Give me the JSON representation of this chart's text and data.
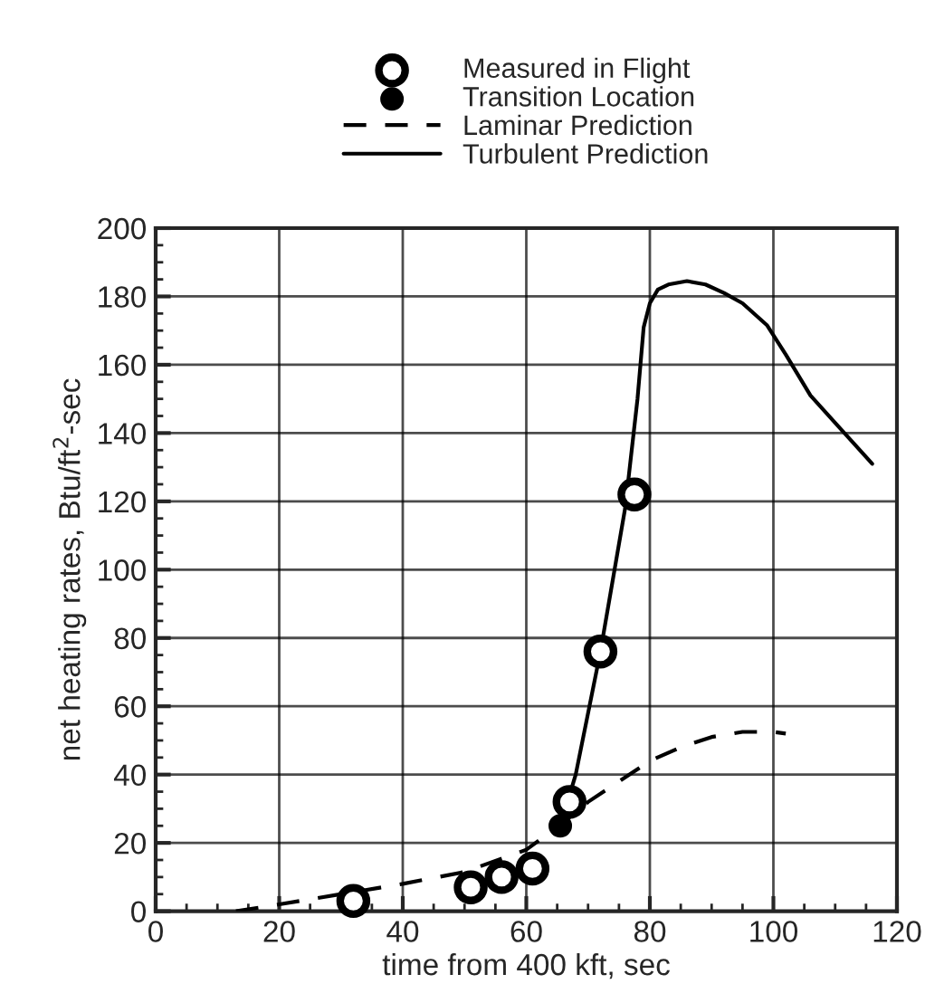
{
  "chart_data": {
    "type": "scatter",
    "xlabel": "time from 400 kft, sec",
    "ylabel": "net heating rates, Btu/ft$^{2}$-sec",
    "xlim": [
      0,
      120
    ],
    "ylim": [
      0,
      200
    ],
    "xticks": [
      0,
      20,
      40,
      60,
      80,
      100,
      120
    ],
    "yticks": [
      0,
      20,
      40,
      60,
      80,
      100,
      120,
      140,
      160,
      180,
      200
    ],
    "grid": true,
    "legend": "top",
    "series": [
      {
        "name": "Measured in Flight",
        "marker": "circle",
        "color": "#000000",
        "x": [
          32,
          51,
          56,
          61,
          67,
          72,
          77.5
        ],
        "values": [
          3,
          7,
          10,
          12.5,
          32,
          76,
          122
        ]
      },
      {
        "name": "Transition Location",
        "marker": "circle",
        "color": "#000000",
        "x": [
          65.5
        ],
        "values": [
          25
        ]
      },
      {
        "name": "Laminar Prediction",
        "type": "line",
        "line_style": "dashed",
        "color": "#000000",
        "x": [
          13,
          20,
          30,
          40,
          50,
          60,
          66,
          70,
          75,
          80,
          85,
          90,
          95,
          100,
          102
        ],
        "values": [
          0,
          2,
          5,
          8,
          11.5,
          18,
          26,
          32,
          38,
          44,
          48,
          51,
          52.5,
          52.5,
          52
        ]
      },
      {
        "name": "Turbulent Prediction",
        "type": "line",
        "line_style": "solid",
        "color": "#000000",
        "x": [
          65.5,
          68,
          72,
          76,
          78,
          79,
          80,
          81.3,
          83,
          86,
          89,
          92,
          95,
          99,
          102,
          106,
          110,
          116
        ],
        "values": [
          25,
          40,
          76,
          118,
          150,
          171,
          178,
          182,
          183.5,
          184.5,
          183.5,
          181,
          178,
          171.5,
          163,
          151,
          143,
          131
        ]
      }
    ]
  }
}
